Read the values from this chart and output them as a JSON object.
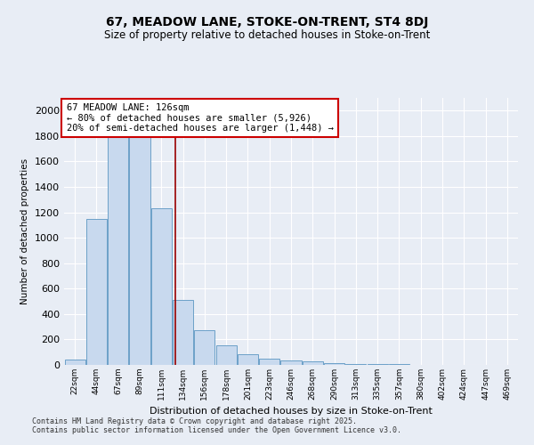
{
  "title1": "67, MEADOW LANE, STOKE-ON-TRENT, ST4 8DJ",
  "title2": "Size of property relative to detached houses in Stoke-on-Trent",
  "xlabel": "Distribution of detached houses by size in Stoke-on-Trent",
  "ylabel": "Number of detached properties",
  "categories": [
    "22sqm",
    "44sqm",
    "67sqm",
    "89sqm",
    "111sqm",
    "134sqm",
    "156sqm",
    "178sqm",
    "201sqm",
    "223sqm",
    "246sqm",
    "268sqm",
    "290sqm",
    "313sqm",
    "335sqm",
    "357sqm",
    "380sqm",
    "402sqm",
    "424sqm",
    "447sqm",
    "469sqm"
  ],
  "values": [
    40,
    1150,
    1950,
    1850,
    1230,
    510,
    270,
    155,
    85,
    50,
    38,
    25,
    15,
    10,
    6,
    4,
    3,
    2,
    2,
    1,
    1
  ],
  "bar_color": "#C8D9EE",
  "bar_edge_color": "#6CA0C8",
  "vline_color": "#990000",
  "annotation_text": "67 MEADOW LANE: 126sqm\n← 80% of detached houses are smaller (5,926)\n20% of semi-detached houses are larger (1,448) →",
  "annotation_box_color": "#FFFFFF",
  "annotation_box_edge": "#CC0000",
  "background_color": "#E8EDF5",
  "plot_bg_color": "#E8EDF5",
  "grid_color": "#FFFFFF",
  "footer1": "Contains HM Land Registry data © Crown copyright and database right 2025.",
  "footer2": "Contains public sector information licensed under the Open Government Licence v3.0.",
  "ylim": [
    0,
    2100
  ],
  "yticks": [
    0,
    200,
    400,
    600,
    800,
    1000,
    1200,
    1400,
    1600,
    1800,
    2000
  ]
}
